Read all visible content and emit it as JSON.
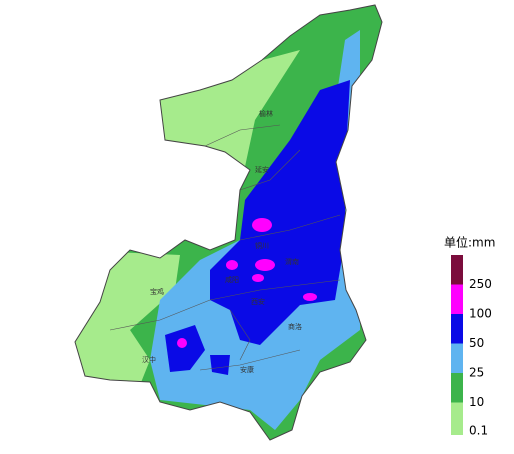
{
  "map": {
    "cities": [
      "榆林",
      "延安",
      "铜川",
      "渭南",
      "咸阳",
      "宝鸡",
      "西安",
      "商洛",
      "汉中",
      "安康"
    ],
    "legend": {
      "title": "单位:mm",
      "levels": [
        {
          "label": "250",
          "color": "#7b0c3c"
        },
        {
          "label": "100",
          "color": "#ff00ff"
        },
        {
          "label": "50",
          "color": "#0a0ae6"
        },
        {
          "label": "25",
          "color": "#5fb4f0"
        },
        {
          "label": "10",
          "color": "#3cb44b"
        },
        {
          "label": "0.1",
          "color": "#a6eb8c"
        }
      ]
    }
  }
}
